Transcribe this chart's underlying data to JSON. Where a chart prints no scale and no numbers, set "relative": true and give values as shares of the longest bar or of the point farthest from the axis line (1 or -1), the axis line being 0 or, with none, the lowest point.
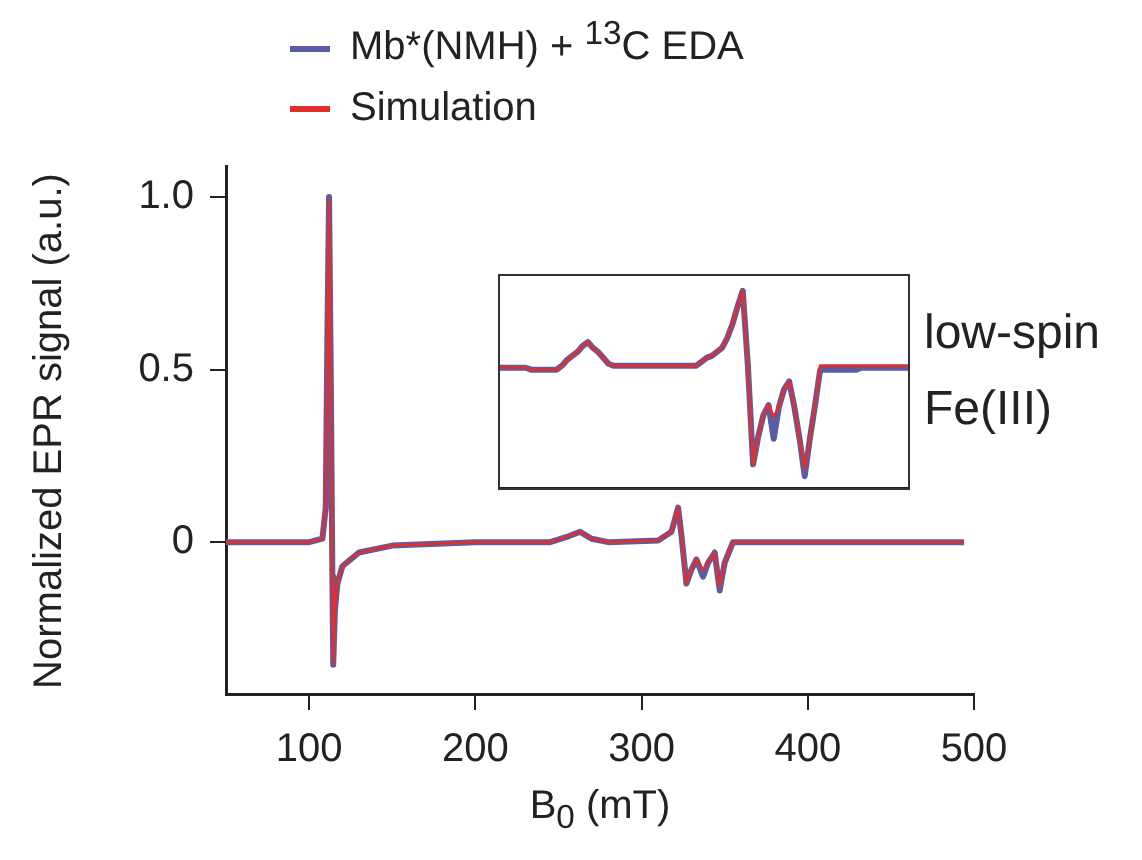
{
  "chart_data": [
    {
      "type": "line",
      "xlabel": "B$_{0}$ (mT)",
      "ylabel": "Normalized EPR signal (a.u.)",
      "xlim": [
        50,
        500
      ],
      "xticks": [
        100,
        200,
        300,
        400,
        500
      ],
      "ylim": [
        -0.44,
        1.09
      ],
      "yticks": [
        0,
        0.5,
        {
          "value": 1,
          "label": "1.0"
        }
      ],
      "grid": false,
      "legend": "top",
      "marker": "none",
      "line_style": "solid",
      "series": [
        {
          "name": "Mb*(NMH) + $^{13}$C EDA",
          "color": "#5b5ba6",
          "x": [
            50,
            100,
            108,
            110,
            111,
            112,
            113,
            114,
            114.5,
            115.5,
            117,
            120,
            130,
            150,
            200,
            245,
            255,
            263,
            270,
            280,
            310,
            318,
            322,
            324,
            327,
            330,
            333,
            337,
            340,
            344,
            347,
            350,
            355,
            400,
            494
          ],
          "values": [
            0,
            0,
            0.01,
            0.1,
            0.6,
            1.0,
            0.5,
            -0.1,
            -0.355,
            -0.2,
            -0.12,
            -0.07,
            -0.03,
            -0.01,
            0,
            0,
            0.015,
            0.03,
            0.01,
            0,
            0.005,
            0.03,
            0.1,
            0.02,
            -0.12,
            -0.08,
            -0.05,
            -0.1,
            -0.06,
            -0.03,
            -0.14,
            -0.06,
            0,
            0,
            0
          ]
        },
        {
          "name": "Simulation",
          "color": "#e0302c",
          "x": [
            50,
            100,
            108,
            110,
            111,
            112,
            113,
            114,
            114.5,
            115.5,
            117,
            120,
            130,
            150,
            200,
            245,
            255,
            263,
            270,
            280,
            310,
            318,
            322,
            324,
            327,
            330,
            333,
            337,
            340,
            344,
            347,
            350,
            355,
            400,
            494
          ],
          "values": [
            0,
            0,
            0.01,
            0.1,
            0.6,
            0.99,
            0.5,
            -0.1,
            -0.35,
            -0.2,
            -0.12,
            -0.07,
            -0.03,
            -0.01,
            0,
            0,
            0.015,
            0.03,
            0.01,
            0,
            0.005,
            0.03,
            0.1,
            0.02,
            -0.12,
            -0.08,
            -0.05,
            -0.08,
            -0.06,
            -0.03,
            -0.13,
            -0.06,
            0,
            0,
            0
          ]
        }
      ]
    },
    {
      "type": "line",
      "relative": true,
      "tick_labels": false,
      "grid": false,
      "legend": false,
      "marker": "none",
      "line_style": "solid",
      "annotations": [
        "low-spin Fe(III)"
      ],
      "categories": [
        null,
        null,
        null,
        null,
        null,
        null,
        null,
        null,
        null,
        null,
        null,
        null,
        null,
        null,
        null,
        null,
        null,
        null,
        null,
        null,
        null,
        null,
        null,
        null,
        null,
        null,
        null,
        null,
        null,
        null,
        null,
        null,
        null,
        null,
        null,
        null,
        null,
        null,
        null,
        null,
        null,
        null,
        null,
        null,
        null,
        null,
        null,
        null,
        null,
        null,
        null,
        null,
        null,
        null,
        null,
        null,
        null,
        null,
        null,
        null,
        null,
        null,
        null,
        null,
        null,
        null,
        null,
        null,
        null,
        null,
        null,
        null,
        null,
        null,
        null,
        null,
        null,
        null,
        null,
        null
      ],
      "series": [
        {
          "color": "#5b5ba6",
          "values": [
            0.61,
            0.61,
            0.61,
            0.61,
            0.61,
            0.61,
            0.6,
            0.6,
            0.6,
            0.6,
            0.6,
            0.6,
            0.62,
            0.65,
            0.67,
            0.69,
            0.72,
            0.74,
            0.71,
            0.69,
            0.66,
            0.63,
            0.62,
            0.62,
            0.62,
            0.62,
            0.62,
            0.62,
            0.62,
            0.62,
            0.62,
            0.62,
            0.62,
            0.62,
            0.62,
            0.62,
            0.62,
            0.62,
            0.62,
            0.64,
            0.66,
            0.67,
            0.69,
            0.71,
            0.76,
            0.83,
            0.92,
            1.0,
            0.62,
            0.12,
            0.26,
            0.37,
            0.42,
            0.25,
            0.41,
            0.5,
            0.54,
            0.41,
            0.25,
            0.06,
            0.25,
            0.42,
            0.6,
            0.6,
            0.6,
            0.6,
            0.6,
            0.6,
            0.6,
            0.6,
            0.61,
            0.61,
            0.61,
            0.61,
            0.61,
            0.61,
            0.61,
            0.61,
            0.61,
            0.61
          ]
        },
        {
          "color": "#e0302c",
          "values": [
            0.61,
            0.61,
            0.61,
            0.61,
            0.61,
            0.61,
            0.6,
            0.6,
            0.6,
            0.6,
            0.6,
            0.6,
            0.62,
            0.65,
            0.67,
            0.69,
            0.72,
            0.74,
            0.71,
            0.69,
            0.66,
            0.63,
            0.62,
            0.62,
            0.62,
            0.62,
            0.62,
            0.62,
            0.62,
            0.62,
            0.62,
            0.62,
            0.62,
            0.62,
            0.62,
            0.62,
            0.62,
            0.62,
            0.62,
            0.64,
            0.66,
            0.67,
            0.69,
            0.71,
            0.76,
            0.83,
            0.92,
            1.0,
            0.62,
            0.12,
            0.26,
            0.37,
            0.42,
            0.36,
            0.41,
            0.5,
            0.54,
            0.41,
            0.25,
            0.1,
            0.25,
            0.42,
            0.62,
            0.62,
            0.62,
            0.62,
            0.62,
            0.62,
            0.62,
            0.62,
            0.62,
            0.62,
            0.62,
            0.62,
            0.62,
            0.62,
            0.62,
            0.62,
            0.62,
            0.62
          ]
        }
      ]
    }
  ]
}
